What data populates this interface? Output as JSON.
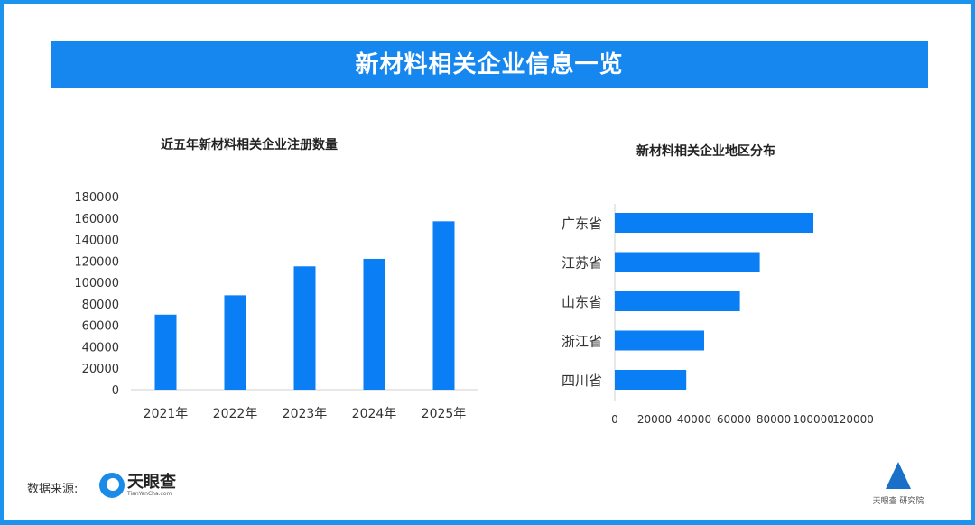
{
  "header": {
    "title": "新材料相关企业信息一览"
  },
  "footer": {
    "source_label": "数据来源:",
    "logo_name": "天眼查",
    "logo_url": "TianYanCha.com",
    "watermark": "天眼查 研究院"
  },
  "colors": {
    "bar": "#0a7ef5",
    "banner": "#1787f0",
    "frame": "#1c93ec"
  },
  "chart_data": [
    {
      "type": "bar",
      "title": "近五年新材料相关企业注册数量",
      "categories": [
        "2021年",
        "2022年",
        "2023年",
        "2024年",
        "2025年"
      ],
      "values": [
        70000,
        88000,
        115000,
        122000,
        157000
      ],
      "ylim": [
        0,
        180000
      ],
      "yticks": [
        "0",
        "20000",
        "40000",
        "60000",
        "80000",
        "100000",
        "120000",
        "140000",
        "160000",
        "180000"
      ],
      "grid": false,
      "orientation": "vertical"
    },
    {
      "type": "bar",
      "title": "新材料相关企业地区分布",
      "categories": [
        "广东省",
        "江苏省",
        "山东省",
        "浙江省",
        "四川省"
      ],
      "values": [
        100000,
        73000,
        63000,
        45000,
        36000
      ],
      "xlim": [
        0,
        120000
      ],
      "xticks": [
        "0",
        "20000",
        "40000",
        "60000",
        "80000",
        "100000",
        "120000"
      ],
      "grid": false,
      "orientation": "horizontal"
    }
  ]
}
